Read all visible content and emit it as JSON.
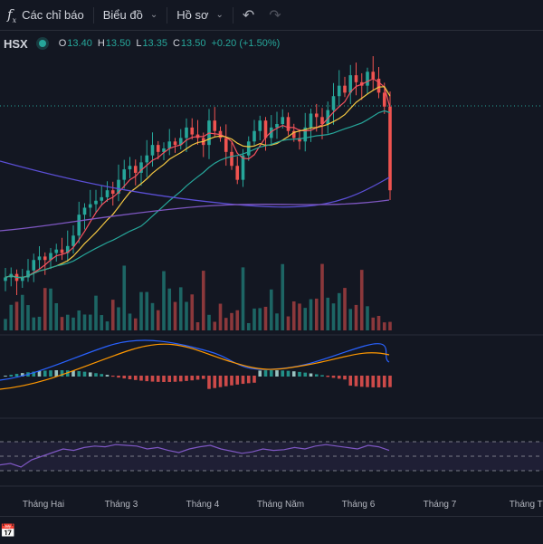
{
  "toolbar": {
    "indicators_label": "Các chỉ báo",
    "chart_label": "Biểu đồ",
    "profile_label": "Hồ sơ",
    "indicators_icon": "function-icon",
    "undo_icon": "undo-icon",
    "redo_icon": "redo-icon"
  },
  "legend": {
    "symbol": "HSX",
    "open_label": "O",
    "open": "13.40",
    "high_label": "H",
    "high": "13.50",
    "low_label": "L",
    "low": "13.35",
    "close_label": "C",
    "close": "13.50",
    "change": "+0.20 (+1.50%)"
  },
  "time_axis": [
    "Tháng Hai",
    "Tháng 3",
    "Tháng 4",
    "Tháng Năm",
    "Tháng 6",
    "Tháng 7",
    "Tháng Tá"
  ],
  "colors": {
    "up": "#26a69a",
    "down": "#ef5350",
    "ma_fast": "#f7525f",
    "ma_yellow": "#f5c842",
    "ma_green": "#26a69a",
    "ma_purple": "#7e57c2",
    "macd": "#2962ff",
    "signal": "#ff9800",
    "rsi": "#7e57c2",
    "background": "#131722"
  },
  "chart_data": {
    "type": "candlestick",
    "close": [
      11.0,
      11.1,
      10.9,
      11.0,
      11.2,
      11.5,
      11.6,
      11.5,
      11.7,
      11.8,
      11.7,
      11.9,
      12.2,
      12.8,
      13.0,
      13.1,
      13.2,
      13.3,
      13.5,
      13.4,
      13.8,
      14.1,
      14.2,
      14.0,
      14.3,
      14.5,
      14.8,
      14.6,
      14.7,
      14.9,
      14.8,
      15.0,
      15.3,
      15.1,
      15.0,
      14.8,
      15.5,
      15.2,
      15.0,
      14.6,
      14.2,
      13.8,
      14.5,
      14.9,
      15.2,
      15.5,
      15.0,
      15.3,
      15.4,
      15.6,
      15.2,
      15.0,
      14.9,
      15.3,
      15.7,
      15.6,
      15.4,
      15.8,
      16.2,
      16.5,
      16.3,
      16.8,
      16.6,
      16.5,
      16.9,
      16.7,
      16.3,
      15.9,
      13.5
    ],
    "rsi": [
      38,
      40,
      35,
      45,
      50,
      55,
      60,
      58,
      62,
      64,
      63,
      66,
      65,
      64,
      60,
      62,
      58,
      55,
      60,
      63,
      65,
      60,
      57,
      54,
      56,
      60,
      58,
      59,
      62,
      60,
      64,
      66,
      64,
      62,
      60,
      65,
      63,
      58
    ],
    "rsi_levels": [
      70,
      50,
      30
    ],
    "x_labels": [
      "Tháng Hai",
      "Tháng 3",
      "Tháng 4",
      "Tháng Năm",
      "Tháng 6",
      "Tháng 7",
      "Tháng Tá"
    ]
  }
}
